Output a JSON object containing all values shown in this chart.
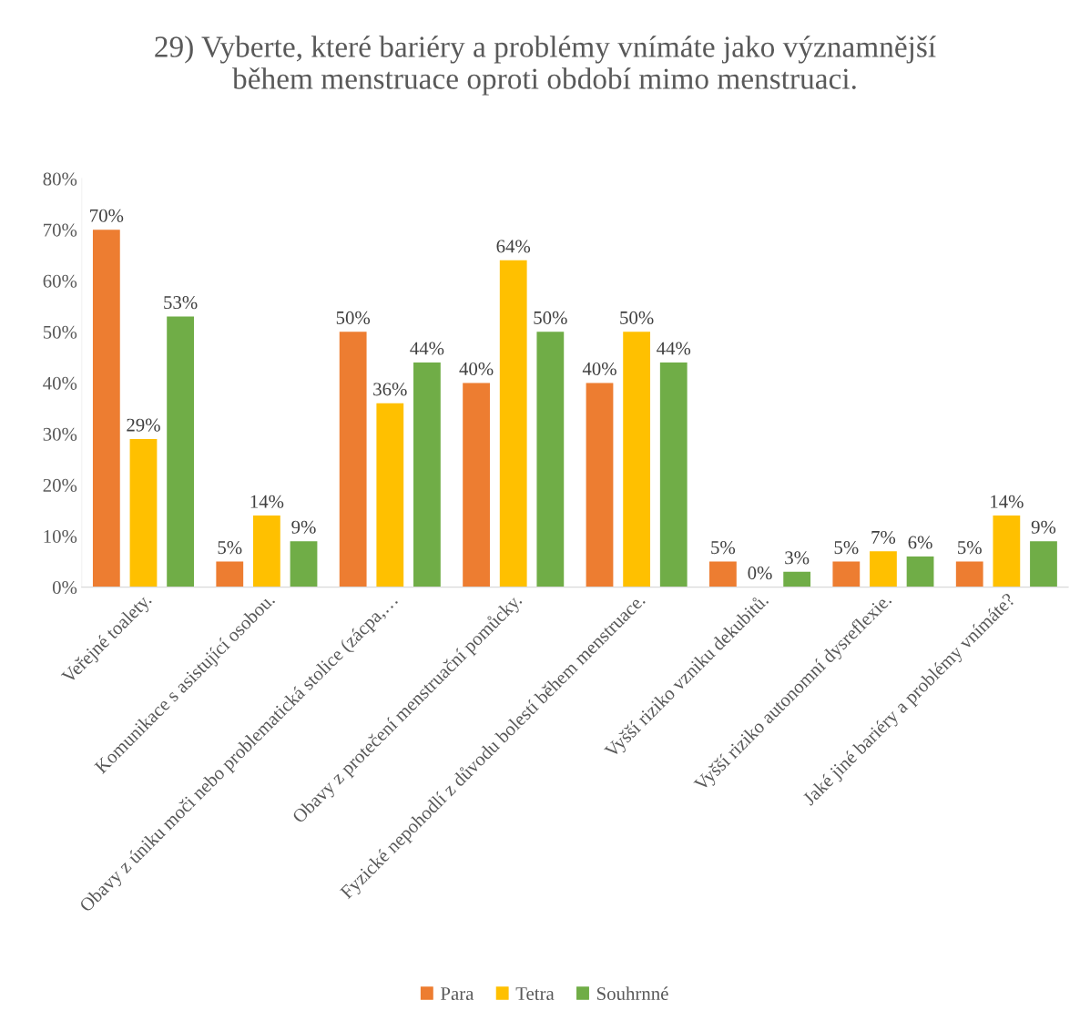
{
  "chart_data": {
    "type": "bar",
    "title": "29) Vyberte, které bariéry a problémy vnímáte jako významnější během menstruace oproti období mimo menstruaci.",
    "categories": [
      "Veřejné toalety.",
      "Komunikace s asistující osobou.",
      "Obavy z úniku moči nebo problematická stolice (zácpa,…",
      "Obavy z protečení menstruační pomůcky.",
      "Fyzické nepohodlí z důvodu bolestí během menstruace.",
      "Vyšší riziko vzniku dekubitů.",
      "Vyšší riziko autonomní dysreflexie.",
      "Jaké jiné bariéry a problémy vnímáte?"
    ],
    "series": [
      {
        "name": "Para",
        "color": "#ed7d31",
        "values": [
          70,
          5,
          50,
          40,
          40,
          5,
          5,
          5
        ],
        "value_labels": [
          "70%",
          "5%",
          "50%",
          "40%",
          "40%",
          "5%",
          "5%",
          "5%"
        ]
      },
      {
        "name": "Tetra",
        "color": "#ffc000",
        "values": [
          29,
          14,
          36,
          64,
          50,
          0,
          7,
          14
        ],
        "value_labels": [
          "29%",
          "14%",
          "36%",
          "64%",
          "50%",
          "0%",
          "7%",
          "14%"
        ]
      },
      {
        "name": "Souhrnné",
        "color": "#70ad47",
        "values": [
          53,
          9,
          44,
          50,
          44,
          3,
          6,
          9
        ],
        "value_labels": [
          "53%",
          "9%",
          "44%",
          "50%",
          "44%",
          "3%",
          "6%",
          "9%"
        ]
      }
    ],
    "ylim": [
      0,
      80
    ],
    "yticks": [
      {
        "value": 0,
        "label": "0%"
      },
      {
        "value": 10,
        "label": "10%"
      },
      {
        "value": 20,
        "label": "20%"
      },
      {
        "value": 30,
        "label": "30%"
      },
      {
        "value": 40,
        "label": "40%"
      },
      {
        "value": 50,
        "label": "50%"
      },
      {
        "value": 60,
        "label": "60%"
      },
      {
        "value": 70,
        "label": "70%"
      },
      {
        "value": 80,
        "label": "80%"
      }
    ],
    "grid": false,
    "legend": "bottom"
  }
}
